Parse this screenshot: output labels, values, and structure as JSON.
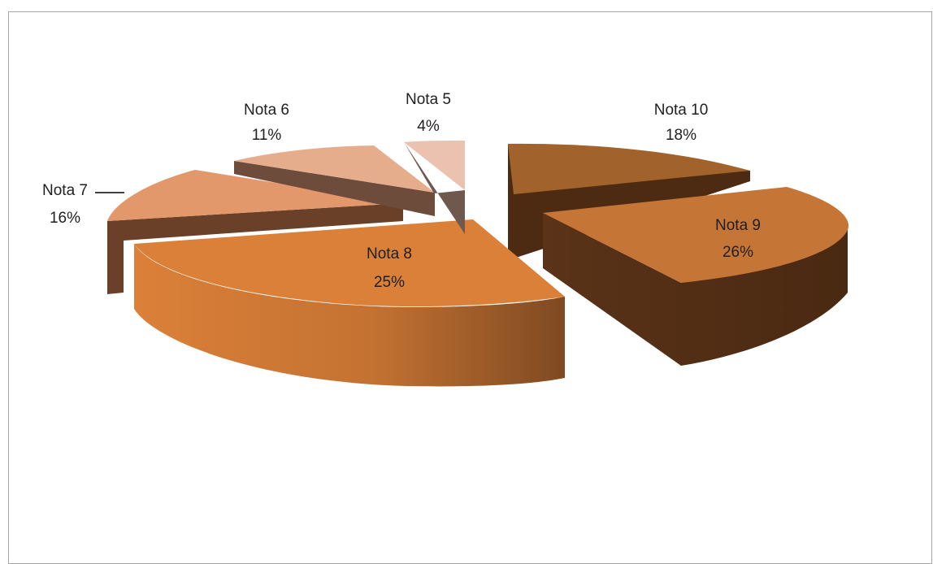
{
  "chart_data": {
    "type": "pie",
    "style": "3d-exploded",
    "categories": [
      "Nota 10",
      "Nota 9",
      "Nota 8",
      "Nota 7",
      "Nota 6",
      "Nota 5"
    ],
    "values": [
      18,
      26,
      25,
      16,
      11,
      4
    ],
    "percent_labels": [
      "18%",
      "26%",
      "25%",
      "16%",
      "11%",
      "4%"
    ],
    "colors": [
      "#a2622c",
      "#c57536",
      "#db8039",
      "#e3986b",
      "#e6ad8c",
      "#ebc1b0"
    ],
    "side_colors": [
      "#4d2b12",
      "#5a3318",
      "#8c4f22",
      "#6a4028",
      "#6e4c3c",
      "#6f594f"
    ],
    "title": "",
    "legend": "none",
    "data_labels": "category-name-and-percent"
  }
}
